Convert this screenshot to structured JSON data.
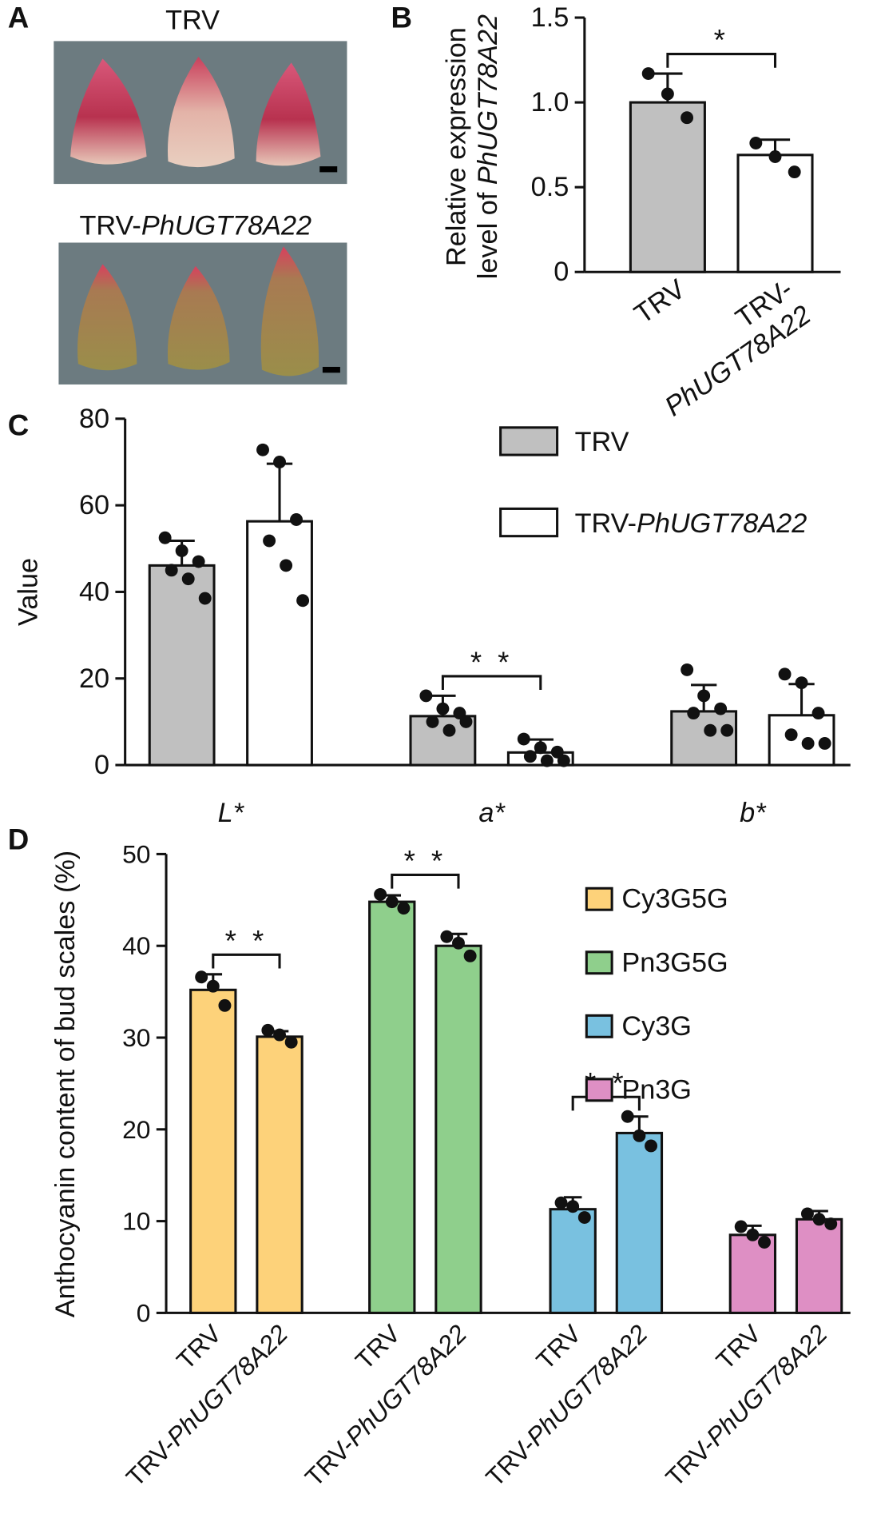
{
  "panel_a": {
    "label": "A",
    "top_label": "TRV",
    "bottom_label": "TRV-PhUGT78A22"
  },
  "chart_data": [
    {
      "type": "bar",
      "panel_label": "B",
      "ylabel": "Relative expression level of PhUGT78A22",
      "categories": [
        "TRV",
        "TRV-PhUGT78A22"
      ],
      "values": [
        1.0,
        0.69
      ],
      "errors": [
        0.17,
        0.09
      ],
      "points": [
        [
          1.17,
          1.05,
          0.91
        ],
        [
          0.76,
          0.68,
          0.59
        ]
      ],
      "colors": [
        "#c0c0c0",
        "#ffffff"
      ],
      "significance": "*",
      "ylim": [
        0,
        1.5
      ],
      "yticks": [
        0,
        0.5,
        {
          "value": 1,
          "label": "1.0"
        },
        1.5
      ]
    },
    {
      "type": "grouped_bar",
      "panel_label": "C",
      "ylabel": "Value",
      "categories": [
        "L*",
        "a*",
        "b*"
      ],
      "series": [
        {
          "name": "TRV",
          "color": "#c0c0c0",
          "values": [
            46.1,
            11.3,
            12.4
          ],
          "errors": [
            5.7,
            4.7,
            6.1
          ],
          "points": [
            [
              52.5,
              49.5,
              47,
              45,
              43,
              38.5
            ],
            [
              16,
              13,
              12,
              10,
              8,
              10
            ],
            [
              22,
              16,
              13,
              12,
              8,
              8
            ]
          ]
        },
        {
          "name": "TRV-PhUGT78A22",
          "color": "#ffffff",
          "values": [
            56.3,
            2.9,
            11.5
          ],
          "errors": [
            13.3,
            3.0,
            7.2
          ],
          "points": [
            [
              72.8,
              70,
              56.7,
              51.8,
              46.1,
              38
            ],
            [
              6,
              4,
              3,
              2,
              1,
              1
            ],
            [
              21,
              19,
              12,
              7,
              5,
              5
            ]
          ]
        }
      ],
      "significance": [
        null,
        "* *",
        null
      ],
      "legend": "upper right",
      "ylim": [
        0,
        80
      ],
      "yticks": [
        0,
        20,
        40,
        60,
        80
      ]
    },
    {
      "type": "bar",
      "panel_label": "D",
      "ylabel": "Anthocyanin content of bud scales (%)",
      "categories": [
        "TRV",
        "TRV-PhUGT78A22"
      ],
      "series": [
        {
          "name": "Cy3G5G",
          "color": "#fdd27a",
          "values": [
            35.2,
            30.1
          ],
          "errors": [
            1.7,
            0.6
          ],
          "points": [
            [
              36.6,
              35.6,
              33.5
            ],
            [
              30.8,
              30.3,
              29.5
            ]
          ],
          "significance": "* *"
        },
        {
          "name": "Pn3G5G",
          "color": "#8fcf8c",
          "values": [
            44.8,
            40.0
          ],
          "errors": [
            0.7,
            1.3
          ],
          "points": [
            [
              45.6,
              44.8,
              44.1
            ],
            [
              41.0,
              40.3,
              38.9
            ]
          ],
          "significance": "* *"
        },
        {
          "name": "Cy3G",
          "color": "#79c1e0",
          "values": [
            11.3,
            19.6
          ],
          "errors": [
            1.3,
            1.8
          ],
          "points": [
            [
              12.0,
              11.6,
              10.4
            ],
            [
              21.4,
              19.3,
              18.2
            ]
          ],
          "significance": "* *"
        },
        {
          "name": "Pn3G",
          "color": "#de8fc4",
          "values": [
            8.5,
            10.2
          ],
          "errors": [
            1.0,
            0.9
          ],
          "points": [
            [
              9.4,
              8.5,
              7.7
            ],
            [
              10.8,
              10.2,
              9.7
            ]
          ]
        }
      ],
      "legend": "upper right",
      "ylim": [
        0,
        50
      ],
      "yticks": [
        0,
        10,
        20,
        30,
        40,
        50
      ]
    }
  ]
}
